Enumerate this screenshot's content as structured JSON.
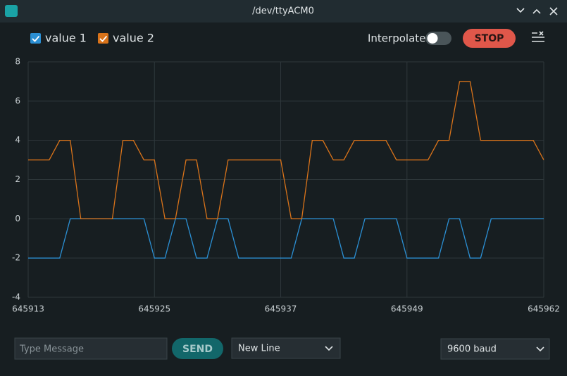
{
  "window_title": "/dev/ttyACM0",
  "toolbar": {
    "interpolate": "Interpolate",
    "stop": "STOP"
  },
  "footer": {
    "message_placeholder": "Type Message",
    "send": "SEND",
    "line_ending": "New Line",
    "baud": "9600 baud"
  },
  "chart_data": {
    "type": "line",
    "x": [
      645913,
      645914,
      645915,
      645916,
      645917,
      645918,
      645919,
      645920,
      645921,
      645922,
      645923,
      645924,
      645925,
      645926,
      645927,
      645928,
      645929,
      645930,
      645931,
      645932,
      645933,
      645934,
      645935,
      645936,
      645937,
      645938,
      645939,
      645940,
      645941,
      645942,
      645943,
      645944,
      645945,
      645946,
      645947,
      645948,
      645949,
      645950,
      645951,
      645952,
      645953,
      645954,
      645955,
      645956,
      645957,
      645958,
      645959,
      645960,
      645961,
      645962
    ],
    "series": [
      {
        "name": "value 1",
        "color": "#2b8fd3",
        "values": [
          -2,
          -2,
          -2,
          -2,
          0,
          0,
          0,
          0,
          0,
          0,
          0,
          0,
          -2,
          -2,
          0,
          0,
          -2,
          -2,
          0,
          0,
          -2,
          -2,
          -2,
          -2,
          -2,
          -2,
          0,
          0,
          0,
          0,
          -2,
          -2,
          0,
          0,
          0,
          0,
          -2,
          -2,
          -2,
          -2,
          0,
          0,
          -2,
          -2,
          0,
          0,
          0,
          0,
          0,
          0
        ]
      },
      {
        "name": "value 2",
        "color": "#d9731a",
        "values": [
          3,
          3,
          3,
          4,
          4,
          0,
          0,
          0,
          0,
          4,
          4,
          3,
          3,
          0,
          0,
          3,
          3,
          0,
          0,
          3,
          3,
          3,
          3,
          3,
          3,
          0,
          0,
          4,
          4,
          3,
          3,
          4,
          4,
          4,
          4,
          3,
          3,
          3,
          3,
          4,
          4,
          7,
          7,
          4,
          4,
          4,
          4,
          4,
          4,
          3
        ]
      }
    ],
    "xlim": [
      645913,
      645962
    ],
    "xticks": [
      645913,
      645925,
      645937,
      645949,
      645962
    ],
    "ylim": [
      -4,
      8
    ],
    "yticks": [
      -4,
      -2,
      0,
      2,
      4,
      6,
      8
    ],
    "grid": true
  }
}
